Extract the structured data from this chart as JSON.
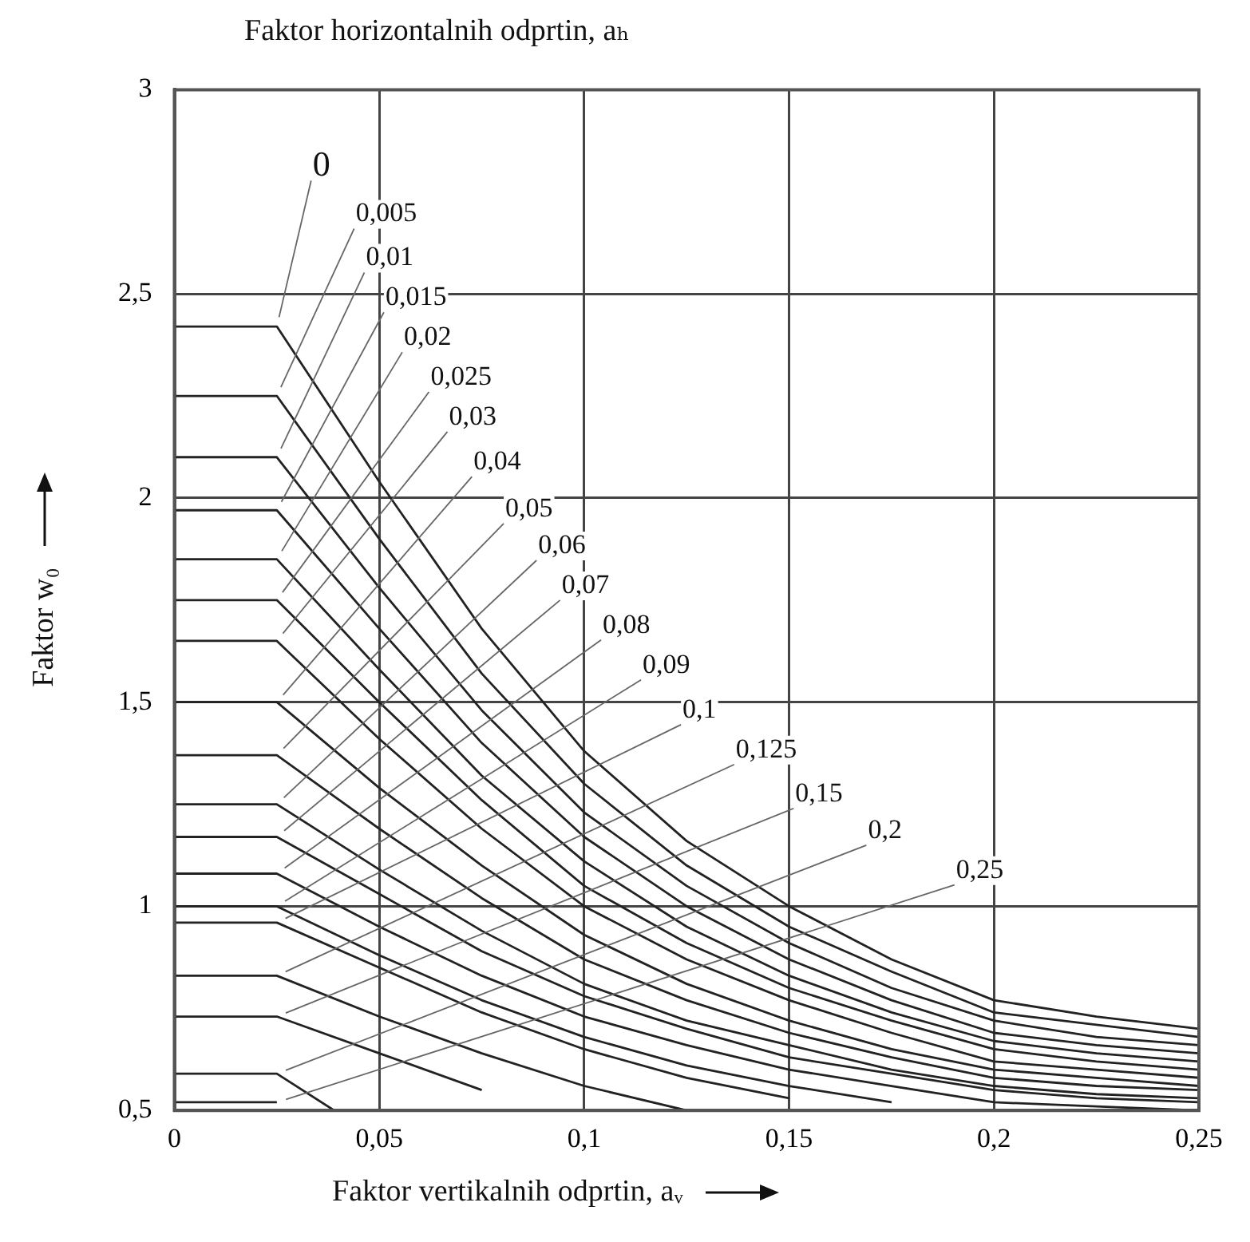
{
  "chart_data": {
    "type": "line",
    "title": "Faktor horizontalnih odprtin, aₕ",
    "xlabel": "Faktor vertikalnih odprtin, aᵥ",
    "ylabel": "Faktor w₀",
    "x": [
      0,
      0.025,
      0.05,
      0.075,
      0.1,
      0.125,
      0.15,
      0.175,
      0.2,
      0.225,
      0.25
    ],
    "series": [
      {
        "name": "0",
        "color": "#222222",
        "values": [
          2.42,
          2.42,
          2.04,
          1.68,
          1.38,
          1.16,
          1.0,
          0.87,
          0.77,
          0.73,
          0.7
        ]
      },
      {
        "name": "0,005",
        "color": "#222222",
        "values": [
          2.25,
          2.25,
          1.9,
          1.57,
          1.3,
          1.1,
          0.95,
          0.84,
          0.74,
          0.71,
          0.68
        ]
      },
      {
        "name": "0,01",
        "color": "#222222",
        "values": [
          2.1,
          2.1,
          1.78,
          1.48,
          1.23,
          1.05,
          0.91,
          0.8,
          0.72,
          0.68,
          0.66
        ]
      },
      {
        "name": "0,015",
        "color": "#222222",
        "values": [
          1.97,
          1.97,
          1.68,
          1.4,
          1.17,
          1.0,
          0.87,
          0.77,
          0.69,
          0.66,
          0.64
        ]
      },
      {
        "name": "0,02",
        "color": "#222222",
        "values": [
          1.85,
          1.85,
          1.58,
          1.32,
          1.11,
          0.95,
          0.83,
          0.74,
          0.67,
          0.64,
          0.62
        ]
      },
      {
        "name": "0,025",
        "color": "#222222",
        "values": [
          1.75,
          1.75,
          1.5,
          1.26,
          1.05,
          0.91,
          0.8,
          0.72,
          0.65,
          0.62,
          0.6
        ]
      },
      {
        "name": "0,03",
        "color": "#222222",
        "values": [
          1.65,
          1.65,
          1.41,
          1.19,
          1.0,
          0.87,
          0.77,
          0.69,
          0.62,
          0.6,
          0.58
        ]
      },
      {
        "name": "0,04",
        "color": "#222222",
        "values": [
          1.5,
          1.5,
          1.29,
          1.1,
          0.93,
          0.81,
          0.72,
          0.65,
          0.6,
          0.58,
          0.56
        ]
      },
      {
        "name": "0,05",
        "color": "#222222",
        "values": [
          1.37,
          1.37,
          1.19,
          1.02,
          0.87,
          0.77,
          0.69,
          0.63,
          0.58,
          0.56,
          0.55
        ]
      },
      {
        "name": "0,06",
        "color": "#222222",
        "values": [
          1.25,
          1.25,
          1.09,
          0.94,
          0.81,
          0.72,
          0.66,
          0.6,
          0.56,
          0.54,
          0.53
        ]
      },
      {
        "name": "0,07",
        "color": "#222222",
        "values": [
          1.17,
          1.17,
          1.03,
          0.89,
          0.78,
          0.7,
          0.63,
          0.59,
          0.55,
          0.53,
          0.52
        ]
      },
      {
        "name": "0,08",
        "color": "#222222",
        "values": [
          1.08,
          1.08,
          0.95,
          0.83,
          0.73,
          0.66,
          0.6,
          0.56,
          0.52,
          0.51,
          0.5
        ]
      },
      {
        "name": "0,09",
        "color": "#222222",
        "values": [
          1.0,
          1.0,
          0.88,
          0.77,
          0.68,
          0.61,
          0.56,
          0.52,
          null,
          null,
          null
        ]
      },
      {
        "name": "0,1",
        "color": "#222222",
        "values": [
          0.96,
          0.96,
          0.85,
          0.74,
          0.65,
          0.58,
          0.53,
          null,
          null,
          null,
          null
        ]
      },
      {
        "name": "0,125",
        "color": "#222222",
        "values": [
          0.83,
          0.83,
          0.73,
          0.64,
          0.56,
          0.5,
          null,
          null,
          null,
          null,
          null
        ]
      },
      {
        "name": "0,15",
        "color": "#222222",
        "values": [
          0.73,
          0.73,
          0.64,
          0.55,
          null,
          null,
          null,
          null,
          null,
          null,
          null
        ]
      },
      {
        "name": "0,2",
        "color": "#222222",
        "x": [
          0,
          0.025,
          0.039
        ],
        "values": [
          0.59,
          0.59,
          0.5
        ]
      },
      {
        "name": "0,25",
        "color": "#222222",
        "x": [
          0,
          0.025
        ],
        "values": [
          0.52,
          0.52
        ]
      }
    ],
    "xlim": [
      0,
      0.25
    ],
    "ylim": [
      0.5,
      3
    ],
    "xticks": [
      0,
      {
        "value": 0.05,
        "label": "0,05"
      },
      {
        "value": 0.1,
        "label": "0,1"
      },
      {
        "value": 0.15,
        "label": "0,15"
      },
      {
        "value": 0.2,
        "label": "0,2"
      },
      {
        "value": 0.25,
        "label": "0,25"
      }
    ],
    "yticks": [
      {
        "value": 0.5,
        "label": "0,5"
      },
      1,
      {
        "value": 1.5,
        "label": "1,5"
      },
      2,
      {
        "value": 2.5,
        "label": "2,5"
      },
      3
    ],
    "grid": true,
    "marker": "none",
    "line_style": "solid"
  }
}
